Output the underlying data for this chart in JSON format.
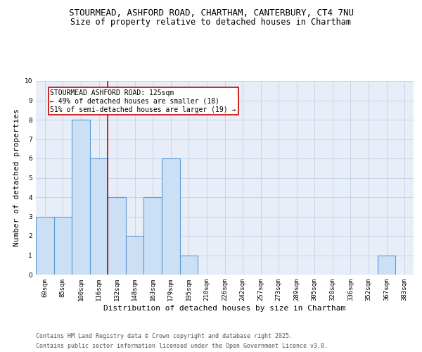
{
  "title_line1": "STOURMEAD, ASHFORD ROAD, CHARTHAM, CANTERBURY, CT4 7NU",
  "title_line2": "Size of property relative to detached houses in Chartham",
  "xlabel": "Distribution of detached houses by size in Chartham",
  "ylabel": "Number of detached properties",
  "categories": [
    "69sqm",
    "85sqm",
    "100sqm",
    "116sqm",
    "132sqm",
    "148sqm",
    "163sqm",
    "179sqm",
    "195sqm",
    "210sqm",
    "226sqm",
    "242sqm",
    "257sqm",
    "273sqm",
    "289sqm",
    "305sqm",
    "320sqm",
    "336sqm",
    "352sqm",
    "367sqm",
    "383sqm"
  ],
  "values": [
    3,
    3,
    8,
    6,
    4,
    2,
    4,
    6,
    1,
    0,
    0,
    0,
    0,
    0,
    0,
    0,
    0,
    0,
    0,
    1,
    0
  ],
  "bar_color": "#cce0f5",
  "bar_edge_color": "#5b9bd5",
  "bar_linewidth": 0.8,
  "grid_color": "#c8d4e8",
  "background_color": "#e8eef8",
  "annotation_box_text": "STOURMEAD ASHFORD ROAD: 125sqm\n← 49% of detached houses are smaller (18)\n51% of semi-detached houses are larger (19) →",
  "vline_x_index": 3.5,
  "vline_color": "#cc0000",
  "ylim": [
    0,
    10
  ],
  "yticks": [
    0,
    1,
    2,
    3,
    4,
    5,
    6,
    7,
    8,
    9,
    10
  ],
  "footer_line1": "Contains HM Land Registry data © Crown copyright and database right 2025.",
  "footer_line2": "Contains public sector information licensed under the Open Government Licence v3.0.",
  "title_fontsize": 9,
  "subtitle_fontsize": 8.5,
  "tick_fontsize": 6.5,
  "ylabel_fontsize": 8,
  "xlabel_fontsize": 8,
  "annot_fontsize": 7,
  "footer_fontsize": 6
}
